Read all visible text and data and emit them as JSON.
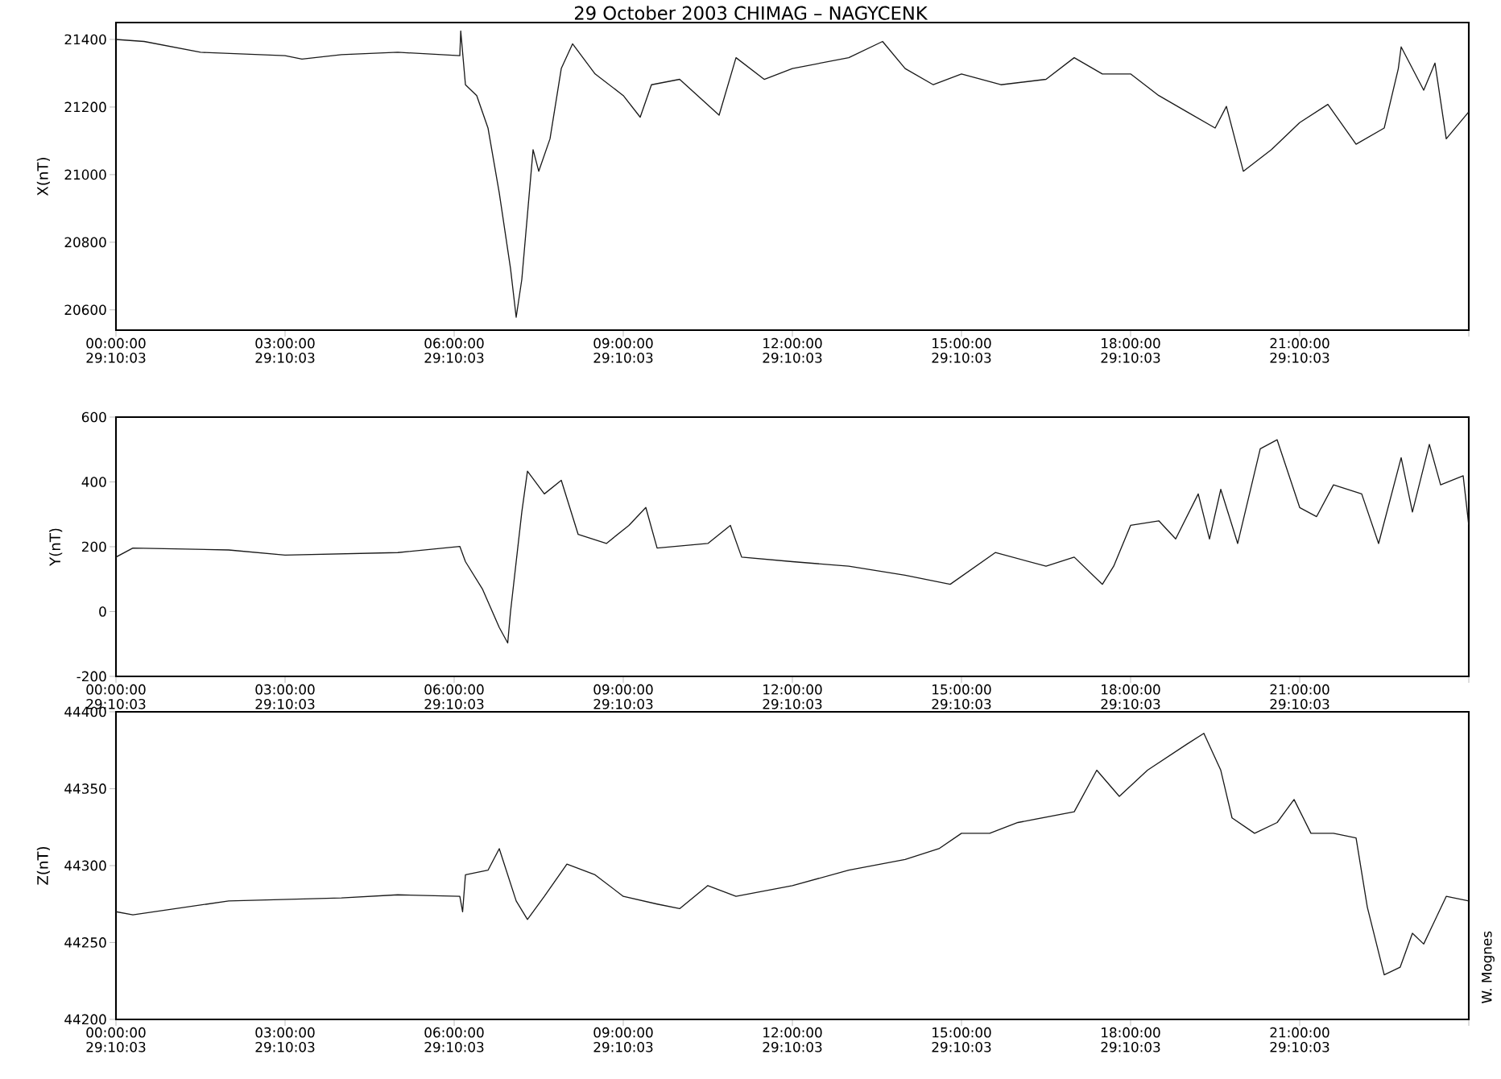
{
  "chart_data": [
    {
      "type": "line",
      "title": "29  October  2003  CHIMAG – NAGYCENK",
      "ylabel": "X(nT)",
      "line_style": "solid",
      "marker": "none",
      "xlim": [
        "2003-10-29T00:00",
        "2003-10-30T00:00"
      ],
      "xticks": [
        {
          "value": "2003-10-29T00:00",
          "label": "00:00:00 29:10:03"
        },
        {
          "value": "2003-10-29T03:00",
          "label": "03:00:00 29:10:03"
        },
        {
          "value": "2003-10-29T06:00",
          "label": "06:00:00 29:10:03"
        },
        {
          "value": "2003-10-29T09:00",
          "label": "09:00:00 29:10:03"
        },
        {
          "value": "2003-10-29T12:00",
          "label": "12:00:00 29:10:03"
        },
        {
          "value": "2003-10-29T15:00",
          "label": "15:00:00 29:10:03"
        },
        {
          "value": "2003-10-29T18:00",
          "label": "18:00:00 29:10:03"
        },
        {
          "value": "2003-10-29T21:00",
          "label": "21:00:00 29:10:03"
        },
        {
          "value": "2003-10-30T00:00",
          "label": null
        }
      ],
      "ylim": [
        20540,
        21450
      ],
      "yticks": [
        20600,
        20800,
        21000,
        21200,
        21400
      ],
      "series": [
        {
          "color": "#1a1a1a",
          "x": [
            "2003-10-29T00:00",
            "2003-10-29T00:30",
            "2003-10-29T01:30",
            "2003-10-29T03:00",
            "2003-10-29T03:18",
            "2003-10-29T04:00",
            "2003-10-29T05:00",
            "2003-10-29T06:06",
            "2003-10-29T06:07",
            "2003-10-29T06:12",
            "2003-10-29T06:24",
            "2003-10-29T06:36",
            "2003-10-29T06:48",
            "2003-10-29T07:00",
            "2003-10-29T07:06",
            "2003-10-29T07:12",
            "2003-10-29T07:24",
            "2003-10-29T07:30",
            "2003-10-29T07:42",
            "2003-10-29T07:54",
            "2003-10-29T08:06",
            "2003-10-29T08:30",
            "2003-10-29T09:00",
            "2003-10-29T09:18",
            "2003-10-29T09:30",
            "2003-10-29T10:00",
            "2003-10-29T10:42",
            "2003-10-29T11:00",
            "2003-10-29T11:30",
            "2003-10-29T12:00",
            "2003-10-29T13:00",
            "2003-10-29T13:36",
            "2003-10-29T14:00",
            "2003-10-29T14:30",
            "2003-10-29T15:00",
            "2003-10-29T15:42",
            "2003-10-29T16:30",
            "2003-10-29T17:00",
            "2003-10-29T17:30",
            "2003-10-29T18:00",
            "2003-10-29T18:30",
            "2003-10-29T19:00",
            "2003-10-29T19:30",
            "2003-10-29T19:42",
            "2003-10-29T20:00",
            "2003-10-29T20:30",
            "2003-10-29T21:00",
            "2003-10-29T21:30",
            "2003-10-29T22:00",
            "2003-10-29T22:30",
            "2003-10-29T22:45",
            "2003-10-29T22:48",
            "2003-10-29T23:12",
            "2003-10-29T23:24",
            "2003-10-29T23:36",
            "2003-10-30T00:00"
          ],
          "values": [
            21400,
            21394,
            21362,
            21352,
            21342,
            21355,
            21362,
            21352,
            21425,
            21266,
            21234,
            21138,
            20946,
            20722,
            20578,
            20690,
            21074,
            21010,
            21106,
            21314,
            21387,
            21298,
            21234,
            21170,
            21266,
            21282,
            21176,
            21346,
            21282,
            21314,
            21346,
            21394,
            21314,
            21266,
            21298,
            21266,
            21282,
            21346,
            21298,
            21298,
            21234,
            21186,
            21138,
            21202,
            21010,
            21074,
            21154,
            21208,
            21090,
            21138,
            21314,
            21378,
            21250,
            21330,
            21106,
            21186
          ]
        }
      ]
    },
    {
      "type": "line",
      "ylabel": "Y(nT)",
      "line_style": "solid",
      "marker": "none",
      "xlim": [
        "2003-10-29T00:00",
        "2003-10-30T00:00"
      ],
      "xticks": [
        {
          "value": "2003-10-29T00:00",
          "label": "00:00:00 29:10:03"
        },
        {
          "value": "2003-10-29T03:00",
          "label": "03:00:00 29:10:03"
        },
        {
          "value": "2003-10-29T06:00",
          "label": "06:00:00 29:10:03"
        },
        {
          "value": "2003-10-29T09:00",
          "label": "09:00:00 29:10:03"
        },
        {
          "value": "2003-10-29T12:00",
          "label": "12:00:00 29:10:03"
        },
        {
          "value": "2003-10-29T15:00",
          "label": "15:00:00 29:10:03"
        },
        {
          "value": "2003-10-29T18:00",
          "label": "18:00:00 29:10:03"
        },
        {
          "value": "2003-10-29T21:00",
          "label": "21:00:00 29:10:03"
        },
        {
          "value": "2003-10-30T00:00",
          "label": null
        }
      ],
      "ylim": [
        -200,
        600
      ],
      "yticks": [
        -200,
        0,
        200,
        400,
        600
      ],
      "series": [
        {
          "color": "#1a1a1a",
          "x": [
            "2003-10-29T00:00",
            "2003-10-29T00:18",
            "2003-10-29T02:00",
            "2003-10-29T03:00",
            "2003-10-29T05:00",
            "2003-10-29T06:06",
            "2003-10-29T06:12",
            "2003-10-29T06:30",
            "2003-10-29T06:48",
            "2003-10-29T06:57",
            "2003-10-29T07:00",
            "2003-10-29T07:12",
            "2003-10-29T07:18",
            "2003-10-29T07:36",
            "2003-10-29T07:54",
            "2003-10-29T08:12",
            "2003-10-29T08:42",
            "2003-10-29T09:06",
            "2003-10-29T09:24",
            "2003-10-29T09:36",
            "2003-10-29T10:30",
            "2003-10-29T10:54",
            "2003-10-29T11:06",
            "2003-10-29T12:00",
            "2003-10-29T13:00",
            "2003-10-29T14:00",
            "2003-10-29T14:48",
            "2003-10-29T15:36",
            "2003-10-29T16:30",
            "2003-10-29T17:00",
            "2003-10-29T17:30",
            "2003-10-29T17:42",
            "2003-10-29T18:00",
            "2003-10-29T18:30",
            "2003-10-29T18:48",
            "2003-10-29T19:12",
            "2003-10-29T19:24",
            "2003-10-29T19:36",
            "2003-10-29T19:54",
            "2003-10-29T20:18",
            "2003-10-29T20:36",
            "2003-10-29T21:00",
            "2003-10-29T21:18",
            "2003-10-29T21:36",
            "2003-10-29T22:06",
            "2003-10-29T22:24",
            "2003-10-29T22:48",
            "2003-10-29T23:00",
            "2003-10-29T23:18",
            "2003-10-29T23:30",
            "2003-10-29T23:54",
            "2003-10-30T00:00"
          ],
          "values": [
            168,
            196,
            190,
            174,
            182,
            201,
            154,
            70,
            -49,
            -97,
            0,
            307,
            433,
            363,
            405,
            238,
            210,
            266,
            321,
            196,
            210,
            266,
            168,
            154,
            140,
            112,
            84,
            182,
            140,
            168,
            84,
            140,
            266,
            280,
            224,
            363,
            224,
            377,
            210,
            502,
            530,
            321,
            293,
            391,
            363,
            210,
            475,
            307,
            516,
            391,
            419,
            266
          ]
        }
      ]
    },
    {
      "type": "line",
      "ylabel": "Z(nT)",
      "line_style": "solid",
      "marker": "none",
      "annotations": [
        "W. Mognes"
      ],
      "xlim": [
        "2003-10-29T00:00",
        "2003-10-30T00:00"
      ],
      "xticks": [
        {
          "value": "2003-10-29T00:00",
          "label": "00:00:00 29:10:03"
        },
        {
          "value": "2003-10-29T03:00",
          "label": "03:00:00 29:10:03"
        },
        {
          "value": "2003-10-29T06:00",
          "label": "06:00:00 29:10:03"
        },
        {
          "value": "2003-10-29T09:00",
          "label": "09:00:00 29:10:03"
        },
        {
          "value": "2003-10-29T12:00",
          "label": "12:00:00 29:10:03"
        },
        {
          "value": "2003-10-29T15:00",
          "label": "15:00:00 29:10:03"
        },
        {
          "value": "2003-10-29T18:00",
          "label": "18:00:00 29:10:03"
        },
        {
          "value": "2003-10-29T21:00",
          "label": "21:00:00 29:10:03"
        },
        {
          "value": "2003-10-30T00:00",
          "label": null
        }
      ],
      "ylim": [
        44200,
        44400
      ],
      "yticks": [
        44200,
        44250,
        44300,
        44350,
        44400
      ],
      "series": [
        {
          "color": "#1a1a1a",
          "x": [
            "2003-10-29T00:00",
            "2003-10-29T00:18",
            "2003-10-29T02:00",
            "2003-10-29T04:00",
            "2003-10-29T05:00",
            "2003-10-29T06:06",
            "2003-10-29T06:09",
            "2003-10-29T06:12",
            "2003-10-29T06:36",
            "2003-10-29T06:48",
            "2003-10-29T07:06",
            "2003-10-29T07:18",
            "2003-10-29T07:36",
            "2003-10-29T08:00",
            "2003-10-29T08:30",
            "2003-10-29T09:00",
            "2003-10-29T09:36",
            "2003-10-29T10:00",
            "2003-10-29T10:30",
            "2003-10-29T11:00",
            "2003-10-29T12:00",
            "2003-10-29T13:00",
            "2003-10-29T14:00",
            "2003-10-29T14:36",
            "2003-10-29T15:00",
            "2003-10-29T15:30",
            "2003-10-29T16:00",
            "2003-10-29T17:00",
            "2003-10-29T17:24",
            "2003-10-29T17:48",
            "2003-10-29T18:18",
            "2003-10-29T19:00",
            "2003-10-29T19:18",
            "2003-10-29T19:36",
            "2003-10-29T19:48",
            "2003-10-29T20:12",
            "2003-10-29T20:36",
            "2003-10-29T20:54",
            "2003-10-29T21:12",
            "2003-10-29T21:36",
            "2003-10-29T22:00",
            "2003-10-29T22:12",
            "2003-10-29T22:30",
            "2003-10-29T22:47",
            "2003-10-29T23:00",
            "2003-10-29T23:12",
            "2003-10-29T23:36",
            "2003-10-30T00:00"
          ],
          "values": [
            44270,
            44268,
            44277,
            44279,
            44281,
            44280,
            44270,
            44294,
            44297,
            44311,
            44277,
            44265,
            44280,
            44301,
            44294,
            44280,
            44275,
            44272,
            44287,
            44280,
            44287,
            44297,
            44304,
            44311,
            44321,
            44321,
            44328,
            44335,
            44362,
            44345,
            44362,
            44379,
            44386,
            44362,
            44331,
            44321,
            44328,
            44343,
            44321,
            44321,
            44318,
            44273,
            44229,
            44234,
            44256,
            44249,
            44280,
            44277
          ]
        }
      ]
    }
  ]
}
